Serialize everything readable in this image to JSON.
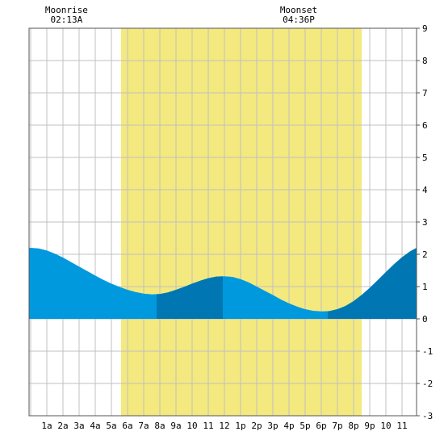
{
  "chart_data": {
    "type": "area",
    "title": "",
    "xlabel": "",
    "ylabel": "",
    "xlim": [
      -0.1,
      23.9
    ],
    "ylim": [
      -3,
      9
    ],
    "x_tick_labels": [
      "1a",
      "2a",
      "3a",
      "4a",
      "5a",
      "6a",
      "7a",
      "8a",
      "9a",
      "10",
      "11",
      "12",
      "1p",
      "2p",
      "3p",
      "4p",
      "5p",
      "6p",
      "7p",
      "8p",
      "9p",
      "10",
      "11"
    ],
    "y_ticks": [
      -3,
      -2,
      -1,
      0,
      1,
      2,
      3,
      4,
      5,
      6,
      7,
      8,
      9
    ],
    "daylight": {
      "start": 5.6,
      "end": 20.5
    },
    "moon_events": [
      {
        "label": "Moonrise",
        "time": "02:13A",
        "hour": 2.22
      },
      {
        "label": "Moonset",
        "time": "04:36P",
        "hour": 16.6
      }
    ],
    "highlight_periods": [
      {
        "start": 7.8,
        "end": 11.9
      },
      {
        "start": 18.4,
        "end": 23.9
      }
    ],
    "x": [
      -0.1,
      0,
      0.5,
      1,
      1.5,
      2,
      2.5,
      3,
      3.5,
      4,
      4.5,
      5,
      5.5,
      6,
      6.5,
      7,
      7.5,
      8,
      8.5,
      9,
      9.5,
      10,
      10.5,
      11,
      11.5,
      12,
      12.5,
      13,
      13.5,
      14,
      14.5,
      15,
      15.5,
      16,
      16.5,
      17,
      17.5,
      18,
      18.5,
      19,
      19.5,
      20,
      20.5,
      21,
      21.5,
      22,
      22.5,
      23,
      23.5,
      23.9
    ],
    "y": [
      2.2,
      2.2,
      2.18,
      2.12,
      2.02,
      1.9,
      1.76,
      1.62,
      1.48,
      1.34,
      1.21,
      1.09,
      0.99,
      0.9,
      0.83,
      0.78,
      0.76,
      0.77,
      0.82,
      0.9,
      0.99,
      1.09,
      1.18,
      1.26,
      1.31,
      1.32,
      1.3,
      1.23,
      1.13,
      1.0,
      0.87,
      0.74,
      0.6,
      0.48,
      0.38,
      0.3,
      0.25,
      0.23,
      0.24,
      0.3,
      0.4,
      0.55,
      0.74,
      0.96,
      1.2,
      1.45,
      1.69,
      1.91,
      2.09,
      2.2
    ]
  },
  "colors": {
    "background": "#ffffff",
    "daylight": "#f3e97f",
    "grid": "#c0c0c0",
    "tide": "#0099dd",
    "tide_highlight": "#0077b3",
    "border": "#555555"
  }
}
